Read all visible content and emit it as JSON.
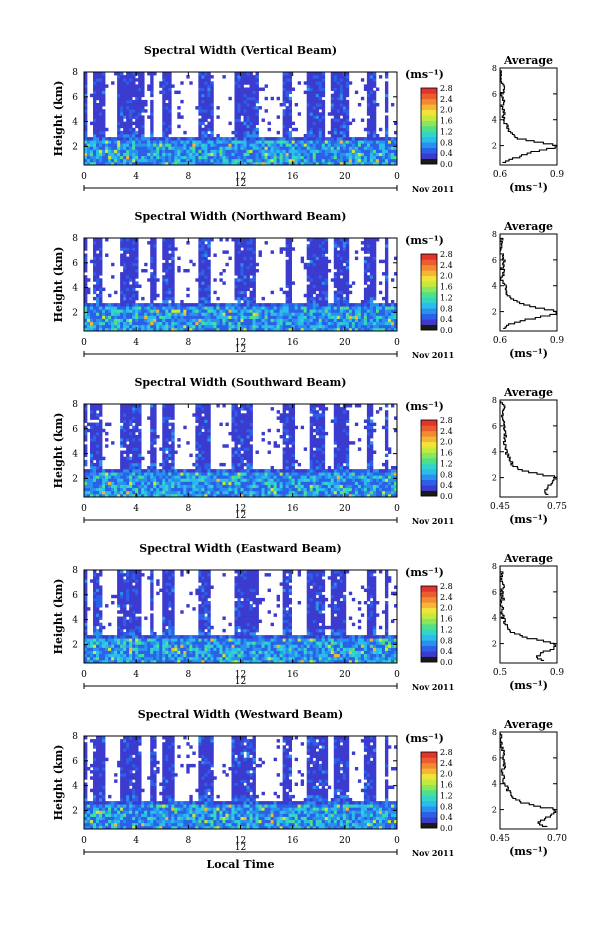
{
  "colorbar_colors": [
    "#1a1a1a",
    "#3b3bcf",
    "#2b60e8",
    "#2a90ee",
    "#2bbcee",
    "#33d6c6",
    "#4fe08a",
    "#8ae65a",
    "#c4ea3c",
    "#f2e33a",
    "#f6b536",
    "#f38a32",
    "#eb5d2e",
    "#e0342c"
  ],
  "chart_data": [
    {
      "type": "heatmap",
      "title": "Spectral Width (Vertical Beam)",
      "xlabel": "",
      "ylabel": "Height (km)",
      "xlim": [
        0,
        24
      ],
      "ylim": [
        0.5,
        8
      ],
      "x_ticks": [
        "0",
        "4",
        "8",
        "12",
        "16",
        "20",
        "0"
      ],
      "y_ticks": [
        "2",
        "4",
        "6",
        "8"
      ],
      "date_label": "Nov 2011",
      "noon_label": "12",
      "unit_label": "(ms⁻¹)",
      "colorbar": {
        "ticks": [
          "0.0",
          "0.4",
          "0.8",
          "1.2",
          "1.6",
          "2.0",
          "2.4",
          "2.8"
        ],
        "range": [
          0,
          2.8
        ]
      },
      "white_columns_hours": [
        [
          0.2,
          0.6
        ],
        [
          1.6,
          2.6
        ],
        [
          4.6,
          5.1
        ],
        [
          5.3,
          6.0
        ],
        [
          6.8,
          8.7
        ],
        [
          9.9,
          11.5
        ],
        [
          13.3,
          15.2
        ],
        [
          15.9,
          17.0
        ],
        [
          18.5,
          19.0
        ],
        [
          20.2,
          21.6
        ],
        [
          22.4,
          23.0
        ],
        [
          23.3,
          24.0
        ]
      ],
      "average": {
        "title": "Average",
        "xlabel": "(ms⁻¹)",
        "xlim": [
          0.6,
          0.9
        ],
        "x_ticks": [
          "0.6",
          "0.9"
        ],
        "ylim": [
          0.5,
          8
        ],
        "y_ticks": [
          "2",
          "4",
          "6",
          "8"
        ],
        "height_km": [
          0.7,
          1.0,
          1.3,
          1.6,
          1.9,
          2.1,
          2.3,
          2.6,
          3.0,
          3.4,
          3.8,
          4.2,
          4.6,
          5.0,
          5.5,
          6.0,
          6.5,
          7.0,
          7.5,
          8.0
        ],
        "values": [
          0.62,
          0.66,
          0.72,
          0.78,
          0.89,
          0.9,
          0.8,
          0.7,
          0.66,
          0.64,
          0.63,
          0.62,
          0.62,
          0.61,
          0.62,
          0.61,
          0.62,
          0.6,
          0.61,
          0.6
        ]
      }
    },
    {
      "type": "heatmap",
      "title": "Spectral Width (Northward Beam)",
      "xlabel": "",
      "ylabel": "Height (km)",
      "xlim": [
        0,
        24
      ],
      "ylim": [
        0.5,
        8
      ],
      "x_ticks": [
        "0",
        "4",
        "8",
        "12",
        "16",
        "20",
        "0"
      ],
      "y_ticks": [
        "2",
        "4",
        "6",
        "8"
      ],
      "date_label": "Nov 2011",
      "noon_label": "12",
      "unit_label": "(ms⁻¹)",
      "colorbar": {
        "ticks": [
          "0.0",
          "0.4",
          "0.8",
          "1.2",
          "1.6",
          "2.0",
          "2.4",
          "2.8"
        ],
        "range": [
          0,
          2.8
        ]
      },
      "white_columns_hours": [
        [
          0.3,
          0.8
        ],
        [
          1.5,
          2.7
        ],
        [
          4.2,
          5.0
        ],
        [
          5.6,
          6.0
        ],
        [
          7.0,
          8.8
        ],
        [
          9.7,
          11.6
        ],
        [
          13.2,
          15.4
        ],
        [
          16.0,
          17.1
        ],
        [
          18.6,
          19.1
        ],
        [
          20.4,
          21.5
        ],
        [
          22.3,
          23.1
        ],
        [
          23.4,
          24.0
        ]
      ],
      "average": {
        "title": "Average",
        "xlabel": "(ms⁻¹)",
        "xlim": [
          0.6,
          0.9
        ],
        "x_ticks": [
          "0.6",
          "0.9"
        ],
        "ylim": [
          0.5,
          8
        ],
        "y_ticks": [
          "2",
          "4",
          "6",
          "8"
        ],
        "height_km": [
          0.7,
          1.0,
          1.3,
          1.6,
          1.9,
          2.1,
          2.3,
          2.6,
          3.0,
          3.4,
          3.8,
          4.2,
          4.6,
          5.0,
          5.5,
          6.0,
          6.5,
          7.0,
          7.5,
          8.0
        ],
        "values": [
          0.61,
          0.64,
          0.7,
          0.8,
          0.89,
          0.9,
          0.82,
          0.72,
          0.66,
          0.64,
          0.63,
          0.62,
          0.61,
          0.62,
          0.61,
          0.62,
          0.61,
          0.6,
          0.61,
          0.6
        ]
      }
    },
    {
      "type": "heatmap",
      "title": "Spectral Width (Southward Beam)",
      "xlabel": "",
      "ylabel": "Height (km)",
      "xlim": [
        0,
        24
      ],
      "ylim": [
        0.5,
        8
      ],
      "x_ticks": [
        "0",
        "4",
        "8",
        "12",
        "16",
        "20",
        "0"
      ],
      "y_ticks": [
        "2",
        "4",
        "6",
        "8"
      ],
      "date_label": "Nov 2011",
      "noon_label": "12",
      "unit_label": "(ms⁻¹)",
      "colorbar": {
        "ticks": [
          "0.0",
          "0.4",
          "0.8",
          "1.2",
          "1.6",
          "2.0",
          "2.4",
          "2.8"
        ],
        "range": [
          0,
          2.8
        ]
      },
      "white_columns_hours": [
        [
          0.3,
          0.5
        ],
        [
          1.4,
          2.8
        ],
        [
          4.3,
          5.0
        ],
        [
          5.5,
          6.1
        ],
        [
          6.9,
          8.6
        ],
        [
          9.8,
          11.4
        ],
        [
          13.0,
          15.3
        ],
        [
          16.1,
          17.2
        ],
        [
          18.4,
          19.2
        ],
        [
          20.3,
          21.7
        ],
        [
          22.2,
          23.0
        ],
        [
          23.4,
          24.0
        ]
      ],
      "average": {
        "title": "Average",
        "xlabel": "(ms⁻¹)",
        "xlim": [
          0.45,
          0.75
        ],
        "x_ticks": [
          "0.45",
          "0.75"
        ],
        "ylim": [
          0.5,
          8
        ],
        "y_ticks": [
          "2",
          "4",
          "6",
          "8"
        ],
        "height_km": [
          0.7,
          1.0,
          1.3,
          1.6,
          1.9,
          2.1,
          2.3,
          2.6,
          3.0,
          3.4,
          3.8,
          4.2,
          4.6,
          5.0,
          5.5,
          6.0,
          6.5,
          7.0,
          7.5,
          8.0
        ],
        "values": [
          0.7,
          0.68,
          0.7,
          0.72,
          0.74,
          0.75,
          0.66,
          0.57,
          0.52,
          0.5,
          0.49,
          0.48,
          0.48,
          0.47,
          0.48,
          0.47,
          0.47,
          0.46,
          0.47,
          0.46
        ]
      }
    },
    {
      "type": "heatmap",
      "title": "Spectral Width (Eastward Beam)",
      "xlabel": "",
      "ylabel": "Height (km)",
      "xlim": [
        0,
        24
      ],
      "ylim": [
        0.5,
        8
      ],
      "x_ticks": [
        "0",
        "4",
        "8",
        "12",
        "16",
        "20",
        "0"
      ],
      "y_ticks": [
        "2",
        "4",
        "6",
        "8"
      ],
      "date_label": "Nov 2011",
      "noon_label": "12",
      "unit_label": "(ms⁻¹)",
      "colorbar": {
        "ticks": [
          "0.0",
          "0.4",
          "0.8",
          "1.2",
          "1.6",
          "2.0",
          "2.4",
          "2.8"
        ],
        "range": [
          0,
          2.8
        ]
      },
      "white_columns_hours": [
        [
          0.2,
          0.6
        ],
        [
          1.5,
          2.6
        ],
        [
          4.4,
          5.0
        ],
        [
          5.4,
          6.0
        ],
        [
          7.0,
          8.7
        ],
        [
          9.8,
          11.5
        ],
        [
          13.3,
          15.2
        ],
        [
          15.9,
          17.0
        ],
        [
          18.5,
          19.0
        ],
        [
          20.1,
          21.6
        ],
        [
          22.4,
          23.0
        ],
        [
          23.3,
          24.0
        ]
      ],
      "average": {
        "title": "Average",
        "xlabel": "(ms⁻¹)",
        "xlim": [
          0.5,
          0.9
        ],
        "x_ticks": [
          "0.5",
          "0.9"
        ],
        "ylim": [
          0.5,
          8
        ],
        "y_ticks": [
          "2",
          "4",
          "6",
          "8"
        ],
        "height_km": [
          0.7,
          1.0,
          1.3,
          1.6,
          1.9,
          2.1,
          2.3,
          2.6,
          3.0,
          3.4,
          3.8,
          4.2,
          4.6,
          5.0,
          5.5,
          6.0,
          6.5,
          7.0,
          7.5,
          8.0
        ],
        "values": [
          0.82,
          0.76,
          0.78,
          0.86,
          0.9,
          0.88,
          0.78,
          0.66,
          0.58,
          0.55,
          0.53,
          0.52,
          0.52,
          0.51,
          0.52,
          0.51,
          0.52,
          0.5,
          0.51,
          0.5
        ]
      }
    },
    {
      "type": "heatmap",
      "title": "Spectral Width (Westward Beam)",
      "xlabel": "Local Time",
      "ylabel": "Height (km)",
      "xlim": [
        0,
        24
      ],
      "ylim": [
        0.5,
        8
      ],
      "x_ticks": [
        "0",
        "4",
        "8",
        "12",
        "16",
        "20",
        "0"
      ],
      "y_ticks": [
        "2",
        "4",
        "6",
        "8"
      ],
      "date_label": "Nov 2011",
      "noon_label": "12",
      "unit_label": "(ms⁻¹)",
      "colorbar": {
        "ticks": [
          "0.0",
          "0.4",
          "0.8",
          "1.2",
          "1.6",
          "2.0",
          "2.4",
          "2.8"
        ],
        "range": [
          0,
          2.8
        ]
      },
      "white_columns_hours": [
        [
          0.3,
          0.7
        ],
        [
          1.6,
          2.7
        ],
        [
          4.3,
          5.0
        ],
        [
          5.6,
          6.1
        ],
        [
          6.9,
          8.7
        ],
        [
          9.9,
          11.4
        ],
        [
          13.2,
          15.3
        ],
        [
          16.0,
          17.1
        ],
        [
          18.6,
          19.1
        ],
        [
          20.3,
          21.5
        ],
        [
          22.3,
          23.0
        ],
        [
          23.4,
          24.0
        ]
      ],
      "average": {
        "title": "Average",
        "xlabel": "(ms⁻¹)",
        "xlim": [
          0.45,
          0.7
        ],
        "x_ticks": [
          "0.45",
          "0.70"
        ],
        "ylim": [
          0.5,
          8
        ],
        "y_ticks": [
          "2",
          "4",
          "6",
          "8"
        ],
        "height_km": [
          0.7,
          1.0,
          1.3,
          1.6,
          1.9,
          2.1,
          2.3,
          2.6,
          3.0,
          3.4,
          3.8,
          4.2,
          4.6,
          5.0,
          5.5,
          6.0,
          6.5,
          7.0,
          7.5,
          8.0
        ],
        "values": [
          0.66,
          0.62,
          0.64,
          0.67,
          0.7,
          0.69,
          0.62,
          0.55,
          0.51,
          0.49,
          0.48,
          0.47,
          0.47,
          0.46,
          0.47,
          0.46,
          0.47,
          0.45,
          0.46,
          0.45
        ]
      }
    }
  ]
}
